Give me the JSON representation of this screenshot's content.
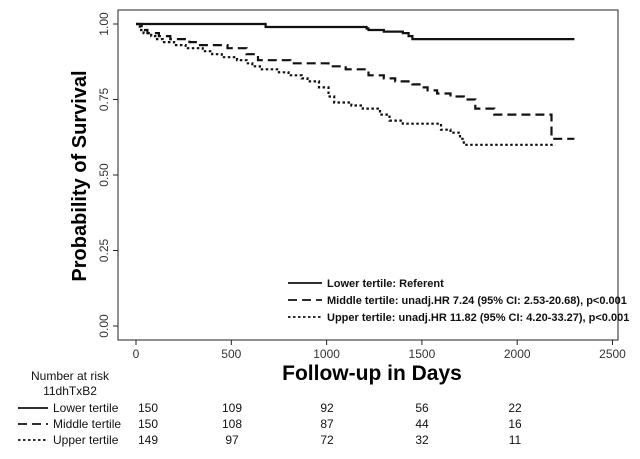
{
  "chart_data": {
    "type": "line",
    "subtype": "kaplan-meier survival curve",
    "title": "",
    "xlabel": "Follow-up in Days",
    "ylabel": "Probability of Survival",
    "xlim": [
      0,
      2500
    ],
    "ylim": [
      0,
      1
    ],
    "x_ticks": [
      "0",
      "500",
      "1000",
      "1500",
      "2000",
      "2500"
    ],
    "y_ticks": [
      "0.00",
      "0.25",
      "0.50",
      "0.75",
      "1.00"
    ],
    "grid": false,
    "legend_position": "bottom-right",
    "series": [
      {
        "name": "Lower tertile: Referent",
        "line_style": "solid",
        "steps": [
          [
            0,
            1.0
          ],
          [
            680,
            1.0
          ],
          [
            680,
            0.99
          ],
          [
            1210,
            0.99
          ],
          [
            1210,
            0.985
          ],
          [
            1220,
            0.985
          ],
          [
            1220,
            0.98
          ],
          [
            1300,
            0.98
          ],
          [
            1300,
            0.975
          ],
          [
            1400,
            0.975
          ],
          [
            1400,
            0.97
          ],
          [
            1430,
            0.97
          ],
          [
            1430,
            0.96
          ],
          [
            1450,
            0.96
          ],
          [
            1450,
            0.95
          ],
          [
            2300,
            0.95
          ]
        ]
      },
      {
        "name": "Middle tertile: unadj.HR  7.24 (95% CI: 2.53-20.68), p<0.001",
        "line_style": "dashed",
        "steps": [
          [
            0,
            1.0
          ],
          [
            30,
            1.0
          ],
          [
            30,
            0.98
          ],
          [
            60,
            0.98
          ],
          [
            60,
            0.97
          ],
          [
            120,
            0.97
          ],
          [
            120,
            0.96
          ],
          [
            180,
            0.96
          ],
          [
            180,
            0.95
          ],
          [
            280,
            0.95
          ],
          [
            280,
            0.94
          ],
          [
            320,
            0.94
          ],
          [
            320,
            0.93
          ],
          [
            480,
            0.93
          ],
          [
            480,
            0.92
          ],
          [
            580,
            0.92
          ],
          [
            580,
            0.9
          ],
          [
            640,
            0.9
          ],
          [
            640,
            0.88
          ],
          [
            810,
            0.88
          ],
          [
            810,
            0.87
          ],
          [
            1010,
            0.87
          ],
          [
            1010,
            0.86
          ],
          [
            1100,
            0.86
          ],
          [
            1100,
            0.85
          ],
          [
            1220,
            0.85
          ],
          [
            1220,
            0.83
          ],
          [
            1300,
            0.83
          ],
          [
            1300,
            0.82
          ],
          [
            1360,
            0.82
          ],
          [
            1360,
            0.81
          ],
          [
            1450,
            0.81
          ],
          [
            1450,
            0.8
          ],
          [
            1500,
            0.8
          ],
          [
            1500,
            0.79
          ],
          [
            1530,
            0.79
          ],
          [
            1530,
            0.78
          ],
          [
            1580,
            0.78
          ],
          [
            1580,
            0.77
          ],
          [
            1650,
            0.77
          ],
          [
            1650,
            0.76
          ],
          [
            1720,
            0.76
          ],
          [
            1720,
            0.75
          ],
          [
            1780,
            0.75
          ],
          [
            1780,
            0.72
          ],
          [
            1880,
            0.72
          ],
          [
            1880,
            0.7
          ],
          [
            2180,
            0.7
          ],
          [
            2180,
            0.62
          ],
          [
            2300,
            0.62
          ]
        ]
      },
      {
        "name": "Upper tertile: unadj.HR  11.82 (95% CI: 4.20-33.27), p<0.001",
        "line_style": "dotted",
        "steps": [
          [
            0,
            1.0
          ],
          [
            20,
            1.0
          ],
          [
            20,
            0.98
          ],
          [
            40,
            0.98
          ],
          [
            40,
            0.97
          ],
          [
            80,
            0.97
          ],
          [
            80,
            0.96
          ],
          [
            110,
            0.96
          ],
          [
            110,
            0.95
          ],
          [
            140,
            0.95
          ],
          [
            140,
            0.94
          ],
          [
            200,
            0.94
          ],
          [
            200,
            0.93
          ],
          [
            260,
            0.93
          ],
          [
            260,
            0.92
          ],
          [
            350,
            0.92
          ],
          [
            350,
            0.91
          ],
          [
            400,
            0.91
          ],
          [
            400,
            0.9
          ],
          [
            450,
            0.9
          ],
          [
            450,
            0.89
          ],
          [
            530,
            0.89
          ],
          [
            530,
            0.88
          ],
          [
            580,
            0.88
          ],
          [
            580,
            0.87
          ],
          [
            610,
            0.87
          ],
          [
            610,
            0.86
          ],
          [
            650,
            0.86
          ],
          [
            650,
            0.85
          ],
          [
            750,
            0.85
          ],
          [
            750,
            0.84
          ],
          [
            800,
            0.84
          ],
          [
            800,
            0.83
          ],
          [
            870,
            0.83
          ],
          [
            870,
            0.82
          ],
          [
            900,
            0.82
          ],
          [
            900,
            0.81
          ],
          [
            960,
            0.81
          ],
          [
            960,
            0.79
          ],
          [
            1010,
            0.79
          ],
          [
            1010,
            0.76
          ],
          [
            1040,
            0.76
          ],
          [
            1040,
            0.74
          ],
          [
            1130,
            0.74
          ],
          [
            1130,
            0.73
          ],
          [
            1190,
            0.73
          ],
          [
            1190,
            0.72
          ],
          [
            1280,
            0.72
          ],
          [
            1280,
            0.7
          ],
          [
            1330,
            0.7
          ],
          [
            1330,
            0.68
          ],
          [
            1400,
            0.68
          ],
          [
            1400,
            0.67
          ],
          [
            1600,
            0.67
          ],
          [
            1600,
            0.65
          ],
          [
            1650,
            0.65
          ],
          [
            1650,
            0.64
          ],
          [
            1700,
            0.64
          ],
          [
            1700,
            0.62
          ],
          [
            1720,
            0.62
          ],
          [
            1720,
            0.6
          ],
          [
            2200,
            0.6
          ]
        ]
      }
    ],
    "risk_table": {
      "title": "Number at risk",
      "subtitle": "11dhTxB2",
      "time_points": [
        0,
        500,
        1000,
        1500,
        2000
      ],
      "rows": [
        {
          "label": "Lower tertile",
          "line_style": "solid",
          "values": [
            "150",
            "109",
            "92",
            "56",
            "22"
          ]
        },
        {
          "label": "Middle tertile",
          "line_style": "dashed",
          "values": [
            "150",
            "108",
            "87",
            "44",
            "16"
          ]
        },
        {
          "label": "Upper tertile",
          "line_style": "dotted",
          "values": [
            "149",
            "97",
            "72",
            "32",
            "11"
          ]
        }
      ]
    }
  }
}
